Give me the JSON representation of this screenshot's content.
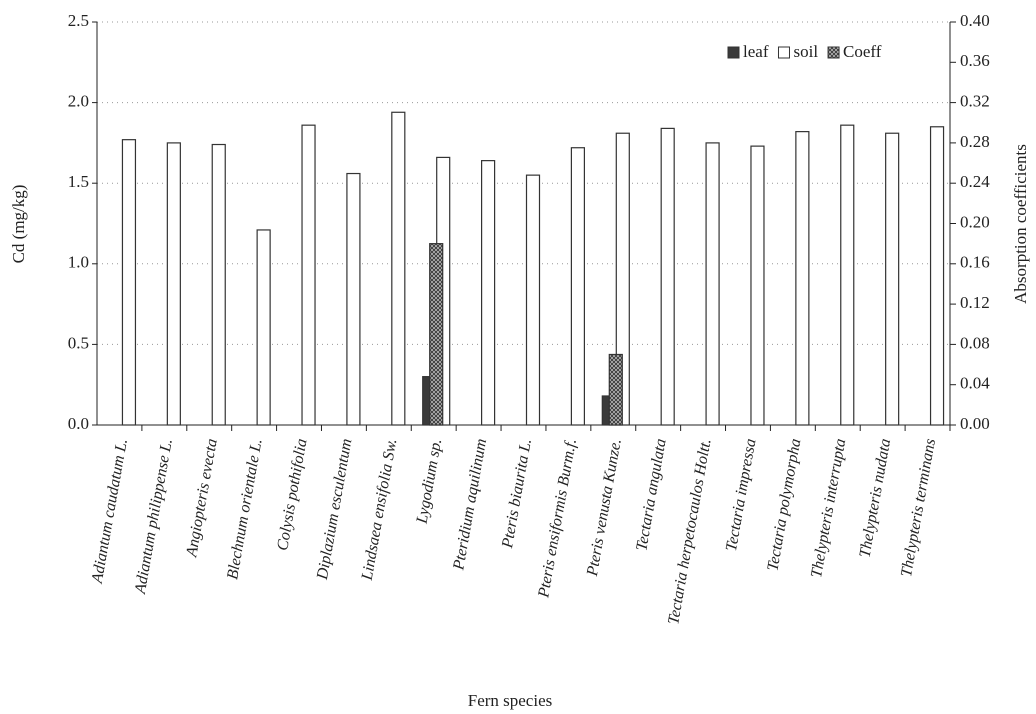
{
  "chart_data": {
    "type": "bar",
    "xlabel": "Fern species",
    "ylabel": "Cd (mg/kg)",
    "y2label": "Absorption coefficients",
    "categories": [
      "Adiantum caudatum L.",
      "Adiantum  philippense L.",
      "Angiopteris evecta",
      "Blechnum orientale L.",
      "Colysis pothifolia",
      "Diplazium esculentum",
      "Lindsaea  ensifolia Sw.",
      "Lygodium sp.",
      "Pteridium  aquilinum",
      "Pteris biaurita L.",
      "Pteris ensiformis Burm.f.",
      "Pteris venusta Kunze.",
      "Tectaria angulata",
      "Tectaria herpetocaulos Holtt.",
      "Tectaria impressa",
      "Tectaria polymorpha",
      "Thelypteris  interrupta",
      "Thelypteris nudata",
      "Thelypteris  terminans"
    ],
    "series": [
      {
        "name": "leaf",
        "color": "#3a3a3a",
        "values": [
          0,
          0,
          0,
          0,
          0,
          0,
          0,
          0.3,
          0,
          0,
          0,
          0.18,
          0,
          0,
          0,
          0,
          0,
          0,
          0
        ]
      },
      {
        "name": "soil",
        "color": "#ffffff",
        "values": [
          1.77,
          1.75,
          1.74,
          1.21,
          1.86,
          1.56,
          1.94,
          1.66,
          1.64,
          1.55,
          1.72,
          1.81,
          1.84,
          1.75,
          1.73,
          1.82,
          1.86,
          1.81,
          1.85
        ]
      },
      {
        "name": "Coeff",
        "color": "#8a8a8a",
        "axis": "y2",
        "values": [
          0,
          0,
          0,
          0,
          0,
          0,
          0,
          0.18,
          0,
          0,
          0,
          0.07,
          0,
          0,
          0,
          0,
          0,
          0,
          0
        ]
      }
    ],
    "ylim": [
      0,
      2.5
    ],
    "yticks": [
      {
        "value": 0,
        "label": "0.0"
      },
      0.5,
      {
        "value": 1,
        "label": "1.0"
      },
      1.5,
      {
        "value": 2,
        "label": "2.0"
      },
      2.5
    ],
    "y2lim": [
      0,
      0.4
    ],
    "y2ticks": [
      {
        "value": 0,
        "label": "0.00"
      },
      {
        "value": 0.04,
        "label": "0.04"
      },
      {
        "value": 0.08,
        "label": "0.08"
      },
      {
        "value": 0.12,
        "label": "0.12"
      },
      {
        "value": 0.16,
        "label": "0.16"
      },
      {
        "value": 0.2,
        "label": "0.20"
      },
      {
        "value": 0.24,
        "label": "0.24"
      },
      {
        "value": 0.28,
        "label": "0.28"
      },
      {
        "value": 0.32,
        "label": "0.32"
      },
      {
        "value": 0.36,
        "label": "0.36"
      },
      {
        "value": 0.4,
        "label": "0.40"
      }
    ],
    "grid": true,
    "legend": "upper right"
  }
}
